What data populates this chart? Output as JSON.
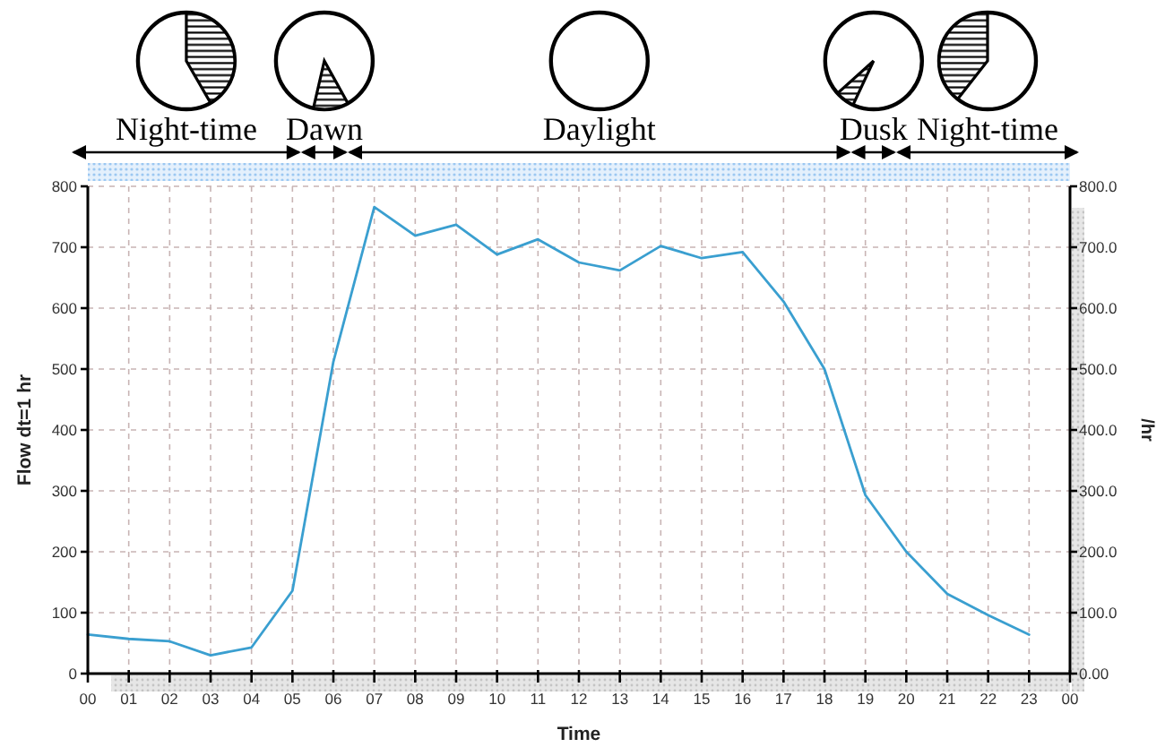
{
  "chart_data": {
    "type": "line",
    "xlabel": "Time",
    "ylabel": "Flow dt=1 hr",
    "y2label": "/hr",
    "annotations": [
      "Night-time",
      "Dawn",
      "Daylight",
      "Dusk",
      "Night-time"
    ],
    "x": [
      0,
      1,
      2,
      3,
      4,
      5,
      6,
      7,
      8,
      9,
      10,
      11,
      12,
      13,
      14,
      15,
      16,
      17,
      18,
      19,
      20,
      21,
      22,
      23
    ],
    "series": [
      {
        "color": "#3a9fd0",
        "values": [
          64,
          57,
          53,
          30,
          43,
          136,
          512,
          766,
          719,
          737,
          688,
          713,
          675,
          662,
          702,
          682,
          692,
          611,
          500,
          293,
          200,
          131,
          96,
          64
        ]
      }
    ],
    "xlim": [
      0,
      24
    ],
    "xticks": [
      {
        "value": 0,
        "label": "00"
      },
      {
        "value": 1,
        "label": "01"
      },
      {
        "value": 2,
        "label": "02"
      },
      {
        "value": 3,
        "label": "03"
      },
      {
        "value": 4,
        "label": "04"
      },
      {
        "value": 5,
        "label": "05"
      },
      {
        "value": 6,
        "label": "06"
      },
      {
        "value": 7,
        "label": "07"
      },
      {
        "value": 8,
        "label": "08"
      },
      {
        "value": 9,
        "label": "09"
      },
      {
        "value": 10,
        "label": "10"
      },
      {
        "value": 11,
        "label": "11"
      },
      {
        "value": 12,
        "label": "12"
      },
      {
        "value": 13,
        "label": "13"
      },
      {
        "value": 14,
        "label": "14"
      },
      {
        "value": 15,
        "label": "15"
      },
      {
        "value": 16,
        "label": "16"
      },
      {
        "value": 17,
        "label": "17"
      },
      {
        "value": 18,
        "label": "18"
      },
      {
        "value": 19,
        "label": "19"
      },
      {
        "value": 20,
        "label": "20"
      },
      {
        "value": 21,
        "label": "21"
      },
      {
        "value": 22,
        "label": "22"
      },
      {
        "value": 23,
        "label": "23"
      },
      {
        "value": 24,
        "label": "00"
      }
    ],
    "ylim": [
      0,
      800
    ],
    "yticks": [
      0,
      100,
      200,
      300,
      400,
      500,
      600,
      700,
      800
    ],
    "y2lim": [
      0,
      800
    ],
    "y2ticks": [
      {
        "value": 0,
        "label": "0.00"
      },
      {
        "value": 100,
        "label": "100.0"
      },
      {
        "value": 200,
        "label": "200.0"
      },
      {
        "value": 300,
        "label": "300.0"
      },
      {
        "value": 400,
        "label": "400.0"
      },
      {
        "value": 500,
        "label": "500.0"
      },
      {
        "value": 600,
        "label": "600.0"
      },
      {
        "value": 700,
        "label": "700.0"
      },
      {
        "value": 800,
        "label": "800.0"
      }
    ],
    "grid": true,
    "line_style": "solid",
    "marker": "none"
  }
}
